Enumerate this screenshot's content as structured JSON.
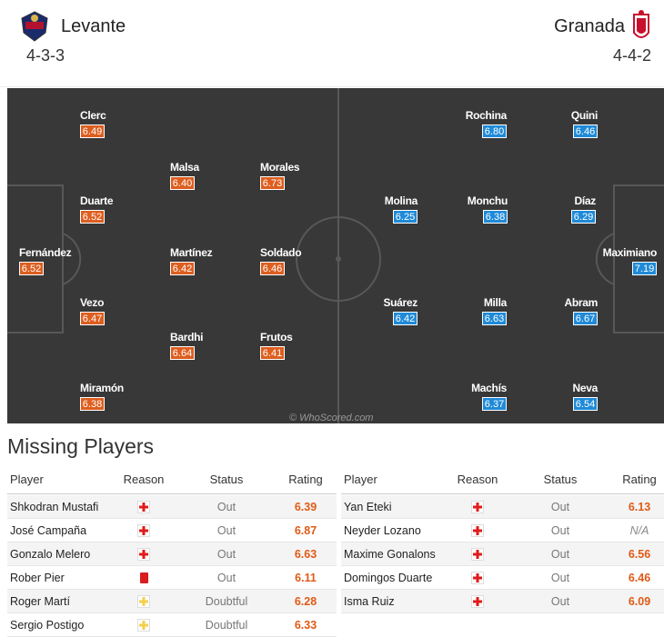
{
  "home": {
    "name": "Levante",
    "formation": "4-3-3",
    "players": [
      {
        "name": "Clerc",
        "rating": "6.49"
      },
      {
        "name": "Malsa",
        "rating": "6.40"
      },
      {
        "name": "Morales",
        "rating": "6.73"
      },
      {
        "name": "Duarte",
        "rating": "6.52"
      },
      {
        "name": "Fernández",
        "rating": "6.52"
      },
      {
        "name": "Martínez",
        "rating": "6.42"
      },
      {
        "name": "Soldado",
        "rating": "6.46"
      },
      {
        "name": "Vezo",
        "rating": "6.47"
      },
      {
        "name": "Bardhi",
        "rating": "6.64"
      },
      {
        "name": "Frutos",
        "rating": "6.41"
      },
      {
        "name": "Miramón",
        "rating": "6.38"
      }
    ]
  },
  "away": {
    "name": "Granada",
    "formation": "4-4-2",
    "players": [
      {
        "name": "Rochina",
        "rating": "6.80"
      },
      {
        "name": "Quini",
        "rating": "6.46"
      },
      {
        "name": "Molina",
        "rating": "6.25"
      },
      {
        "name": "Monchu",
        "rating": "6.38"
      },
      {
        "name": "Díaz",
        "rating": "6.29"
      },
      {
        "name": "Maximiano",
        "rating": "7.19"
      },
      {
        "name": "Suárez",
        "rating": "6.42"
      },
      {
        "name": "Milla",
        "rating": "6.63"
      },
      {
        "name": "Abram",
        "rating": "6.67"
      },
      {
        "name": "Machís",
        "rating": "6.37"
      },
      {
        "name": "Neva",
        "rating": "6.54"
      }
    ]
  },
  "watermark": "© WhoScored.com",
  "missing": {
    "title": "Missing Players",
    "headers": [
      "Player",
      "Reason",
      "Status",
      "Rating"
    ],
    "home_rows": [
      [
        "Shkodran Mustafi",
        "Out",
        "6.39"
      ],
      [
        "José Campaña",
        "Out",
        "6.87"
      ],
      [
        "Gonzalo Melero",
        "Out",
        "6.63"
      ],
      [
        "Rober Pier",
        "Out",
        "6.11"
      ],
      [
        "Roger Martí",
        "Doubtful",
        "6.28"
      ],
      [
        "Sergio Postigo",
        "Doubtful",
        "6.33"
      ]
    ],
    "away_rows": [
      [
        "Yan Eteki",
        "Out",
        "6.13"
      ],
      [
        "Neyder Lozano",
        "Out",
        "N/A"
      ],
      [
        "Maxime Gonalons",
        "Out",
        "6.56"
      ],
      [
        "Domingos Duarte",
        "Out",
        "6.46"
      ],
      [
        "Isma Ruiz",
        "Out",
        "6.09"
      ]
    ]
  }
}
